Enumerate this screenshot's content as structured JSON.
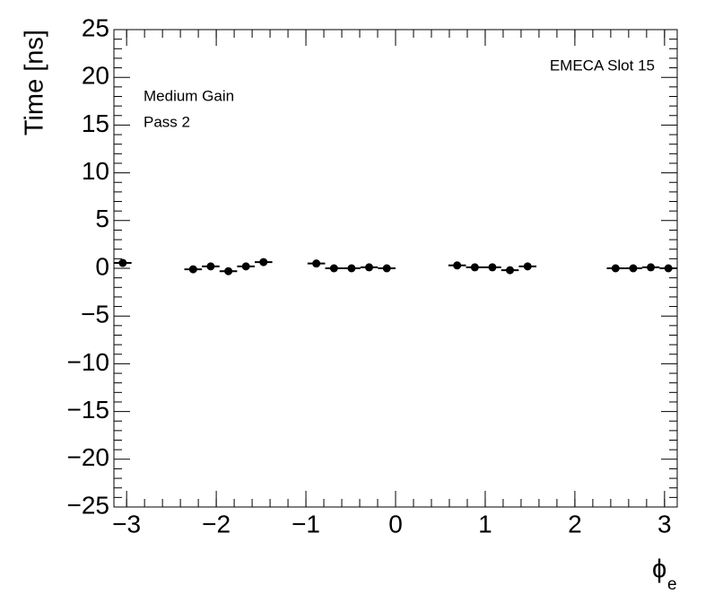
{
  "chart_data": {
    "type": "scatter",
    "y_label": "Time [ns]",
    "x_label": "ϕ",
    "x_label_subscript": "e",
    "annotations": [
      "Medium Gain",
      "Pass 2",
      "EMECA Slot 15"
    ],
    "x": [
      -3.043,
      -2.258,
      -2.062,
      -1.865,
      -1.669,
      -1.473,
      -0.884,
      -0.687,
      -0.491,
      -0.295,
      -0.098,
      0.687,
      0.884,
      1.08,
      1.276,
      1.473,
      2.454,
      2.651,
      2.847,
      3.043
    ],
    "x_error": 0.098,
    "values": [
      0.56,
      -0.1,
      0.2,
      -0.3,
      0.2,
      0.65,
      0.5,
      0.0,
      0.0,
      0.1,
      0.0,
      0.3,
      0.1,
      0.1,
      -0.2,
      0.2,
      0.0,
      0.0,
      0.1,
      0.0
    ],
    "color": "#000000",
    "xlim": [
      -3.1416,
      3.1416
    ],
    "ylim": [
      -25,
      25
    ],
    "xticks": [
      {
        "value": -3,
        "label": "−3"
      },
      {
        "value": -2,
        "label": "−2"
      },
      {
        "value": -1,
        "label": "−1"
      },
      0,
      1,
      2,
      3
    ],
    "yticks": [
      {
        "value": -25,
        "label": "−25"
      },
      {
        "value": -20,
        "label": "−20"
      },
      {
        "value": -15,
        "label": "−15"
      },
      {
        "value": -10,
        "label": "−10"
      },
      {
        "value": -5,
        "label": "−5"
      },
      0,
      5,
      10,
      15,
      20,
      25
    ]
  }
}
